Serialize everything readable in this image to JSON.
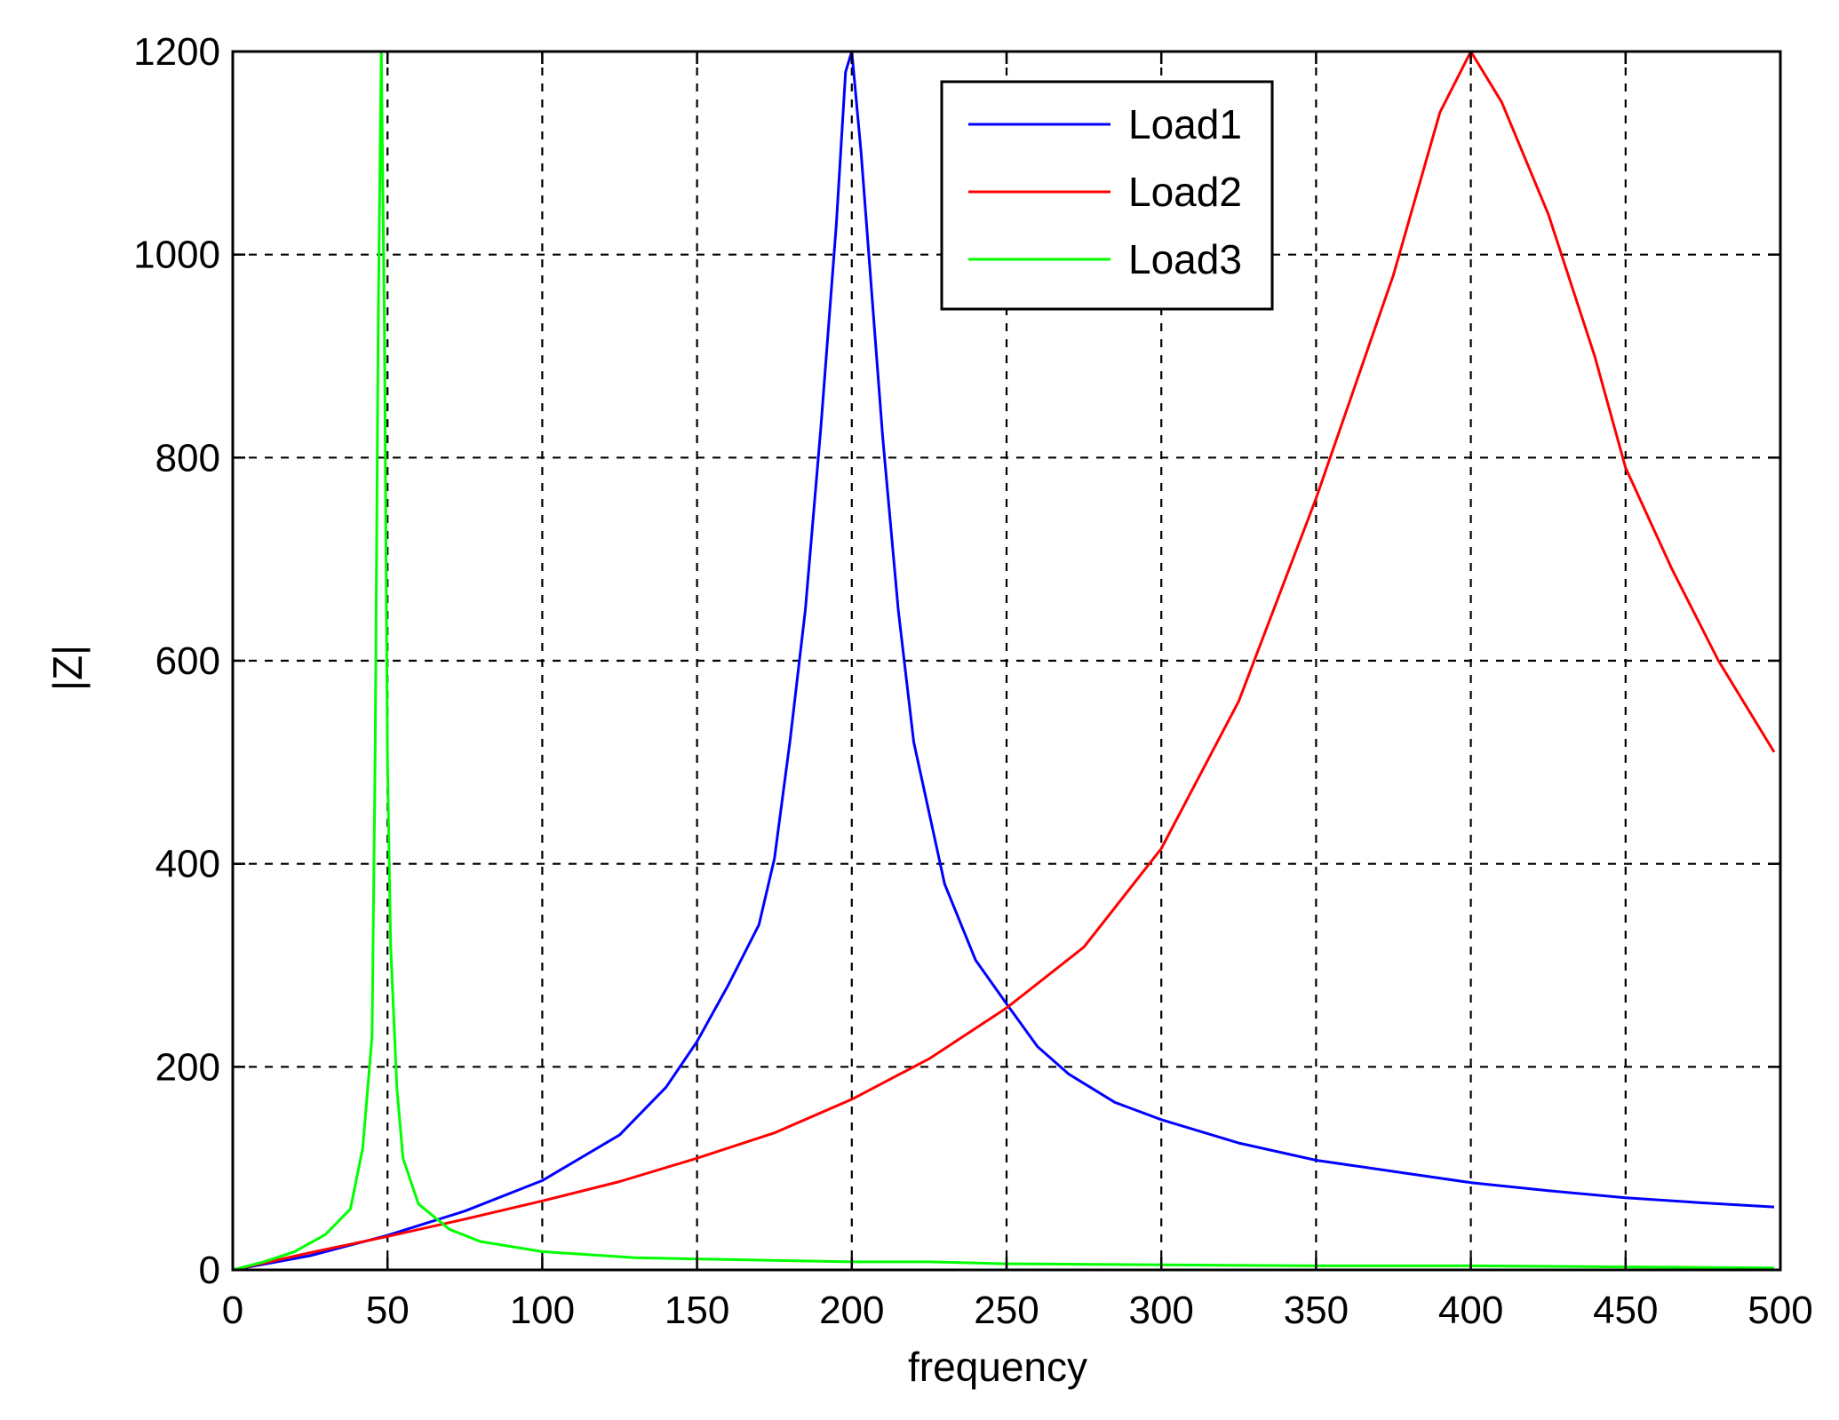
{
  "chart_data": {
    "type": "line",
    "title": "",
    "xlabel": "frequency",
    "ylabel": "|Z|",
    "xlim": [
      0,
      500
    ],
    "ylim": [
      0,
      1200
    ],
    "x_ticks": [
      0,
      50,
      100,
      150,
      200,
      250,
      300,
      350,
      400,
      450,
      500
    ],
    "y_ticks": [
      0,
      200,
      400,
      600,
      800,
      1000,
      1200
    ],
    "grid": true,
    "grid_style": "dashed",
    "legend_position": "top-right",
    "series": [
      {
        "name": "Load1",
        "color": "#0000ff",
        "points": [
          [
            0,
            0
          ],
          [
            25,
            14
          ],
          [
            50,
            34
          ],
          [
            75,
            58
          ],
          [
            100,
            88
          ],
          [
            125,
            133
          ],
          [
            140,
            180
          ],
          [
            150,
            225
          ],
          [
            160,
            280
          ],
          [
            170,
            340
          ],
          [
            175,
            405
          ],
          [
            180,
            520
          ],
          [
            185,
            650
          ],
          [
            190,
            830
          ],
          [
            195,
            1030
          ],
          [
            198,
            1180
          ],
          [
            200,
            1200
          ],
          [
            203,
            1100
          ],
          [
            206,
            980
          ],
          [
            210,
            820
          ],
          [
            215,
            650
          ],
          [
            220,
            520
          ],
          [
            230,
            380
          ],
          [
            240,
            305
          ],
          [
            250,
            262
          ],
          [
            260,
            220
          ],
          [
            270,
            193
          ],
          [
            285,
            165
          ],
          [
            300,
            148
          ],
          [
            325,
            125
          ],
          [
            350,
            108
          ],
          [
            375,
            97
          ],
          [
            400,
            86
          ],
          [
            425,
            78
          ],
          [
            450,
            71
          ],
          [
            475,
            66
          ],
          [
            498,
            62
          ]
        ]
      },
      {
        "name": "Load2",
        "color": "#ff0000",
        "points": [
          [
            0,
            0
          ],
          [
            25,
            17
          ],
          [
            50,
            33
          ],
          [
            75,
            50
          ],
          [
            100,
            68
          ],
          [
            125,
            87
          ],
          [
            150,
            110
          ],
          [
            175,
            135
          ],
          [
            200,
            168
          ],
          [
            225,
            208
          ],
          [
            250,
            258
          ],
          [
            275,
            318
          ],
          [
            300,
            415
          ],
          [
            325,
            560
          ],
          [
            350,
            760
          ],
          [
            375,
            980
          ],
          [
            390,
            1140
          ],
          [
            400,
            1200
          ],
          [
            410,
            1150
          ],
          [
            425,
            1040
          ],
          [
            440,
            900
          ],
          [
            450,
            790
          ],
          [
            465,
            690
          ],
          [
            480,
            600
          ],
          [
            498,
            510
          ]
        ]
      },
      {
        "name": "Load3",
        "color": "#00ff00",
        "points": [
          [
            0,
            0
          ],
          [
            10,
            8
          ],
          [
            20,
            18
          ],
          [
            30,
            35
          ],
          [
            38,
            60
          ],
          [
            42,
            120
          ],
          [
            45,
            230
          ],
          [
            46,
            510
          ],
          [
            47,
            930
          ],
          [
            48,
            1200
          ],
          [
            49,
            930
          ],
          [
            50,
            500
          ],
          [
            51,
            320
          ],
          [
            53,
            180
          ],
          [
            55,
            110
          ],
          [
            60,
            65
          ],
          [
            70,
            40
          ],
          [
            80,
            28
          ],
          [
            100,
            18
          ],
          [
            130,
            12
          ],
          [
            165,
            10
          ],
          [
            200,
            8
          ],
          [
            225,
            8
          ],
          [
            250,
            6
          ],
          [
            300,
            5
          ],
          [
            350,
            4
          ],
          [
            400,
            4
          ],
          [
            450,
            3
          ],
          [
            498,
            2
          ]
        ]
      }
    ]
  }
}
